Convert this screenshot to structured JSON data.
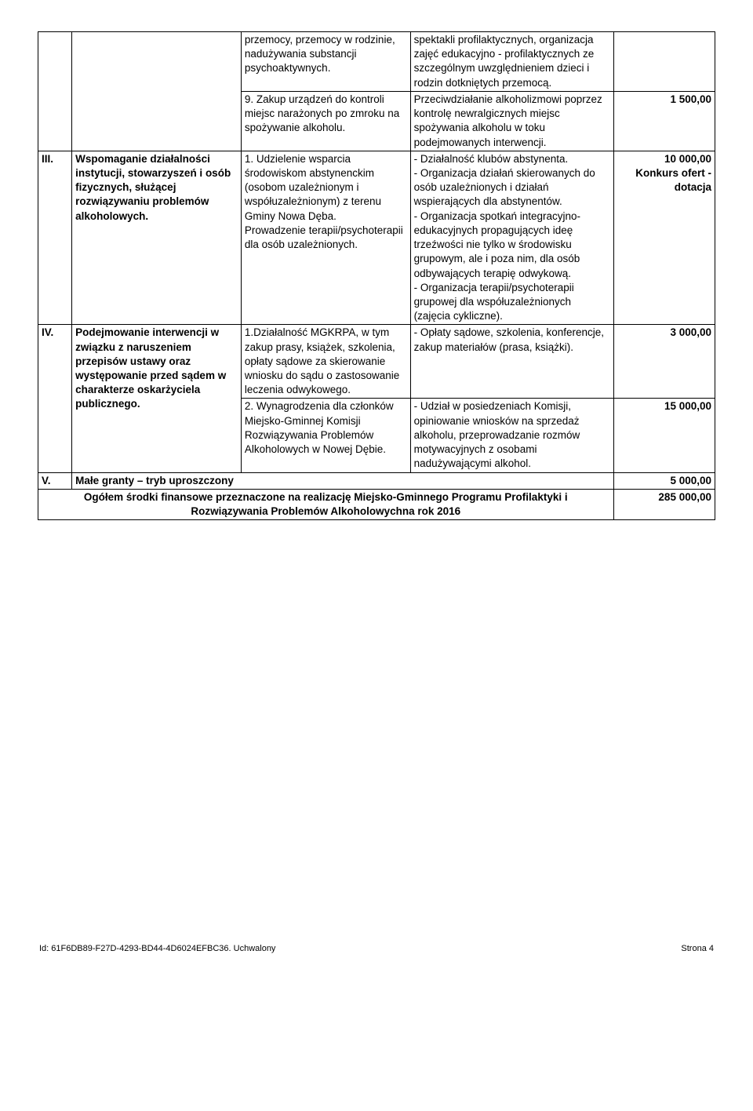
{
  "rows": [
    {
      "c1": "",
      "c2": "",
      "c3": "przemocy, przemocy w rodzinie, nadużywania substancji psychoaktywnych.",
      "c4": "spektakli profilaktycznych, organizacja zajęć edukacyjno - profilaktycznych ze szczególnym uwzględnieniem dzieci i rodzin dotkniętych przemocą.",
      "c5": ""
    },
    {
      "c3": "9. Zakup urządzeń do kontroli miejsc narażonych po zmroku na spożywanie alkoholu.",
      "c4": "Przeciwdziałanie alkoholizmowi poprzez kontrolę newralgicznych miejsc spożywania alkoholu w toku podejmowanych interwencji.",
      "c5": "1 500,00"
    },
    {
      "c1": "III.",
      "c2": "Wspomaganie działalności instytucji, stowarzyszeń i osób fizycznych, służącej rozwiązywaniu problemów alkoholowych.",
      "c3": "1. Udzielenie wsparcia środowiskom abstynenckim (osobom uzależnionym i współuzależnionym) z terenu Gminy Nowa Dęba.\nProwadzenie terapii/psychoterapii dla osób uzależnionych.",
      "c4": "- Działalność klubów abstynenta.\n- Organizacja działań skierowanych do osób uzależnionych i działań wspierających dla abstynentów.\n- Organizacja spotkań integracyjno-edukacyjnych propagujących ideę trzeźwości nie tylko w środowisku grupowym, ale i poza nim, dla osób odbywających terapię odwykową.\n- Organizacja terapii/psychoterapii grupowej dla współuzależnionych (zajęcia cykliczne).",
      "c5": "10 000,00\nKonkurs ofert - dotacja"
    },
    {
      "c1": "IV.",
      "c2": "Podejmowanie interwencji w związku z naruszeniem przepisów ustawy oraz występowanie przed sądem w charakterze oskarżyciela publicznego.",
      "c3": "1.Działalność MGKRPA, w tym zakup prasy, książek, szkolenia, opłaty sądowe za skierowanie wniosku do sądu o zastosowanie leczenia odwykowego.",
      "c4": "- Opłaty sądowe, szkolenia, konferencje, zakup materiałów (prasa, książki).",
      "c5": "3 000,00"
    },
    {
      "c3": "2. Wynagrodzenia dla członków Miejsko-Gminnej Komisji Rozwiązywania Problemów Alkoholowych w Nowej Dębie.",
      "c4": "- Udział w posiedzeniach Komisji, opiniowanie wniosków na sprzedaż alkoholu, przeprowadzanie rozmów motywacyjnych z osobami nadużywającymi alkohol.",
      "c5": "15 000,00"
    }
  ],
  "rowV": {
    "c1": "V.",
    "label": "Małe granty – tryb uproszczony",
    "amount": "5 000,00"
  },
  "total": {
    "label": "Ogółem środki finansowe przeznaczone na realizację Miejsko-Gminnego Programu Profilaktyki i Rozwiązywania Problemów Alkoholowychna rok 2016",
    "amount": "285 000,00"
  },
  "footer": {
    "left": "Id: 61F6DB89-F27D-4293-BD44-4D6024EFBC36. Uchwalony",
    "right": "Strona 4"
  }
}
